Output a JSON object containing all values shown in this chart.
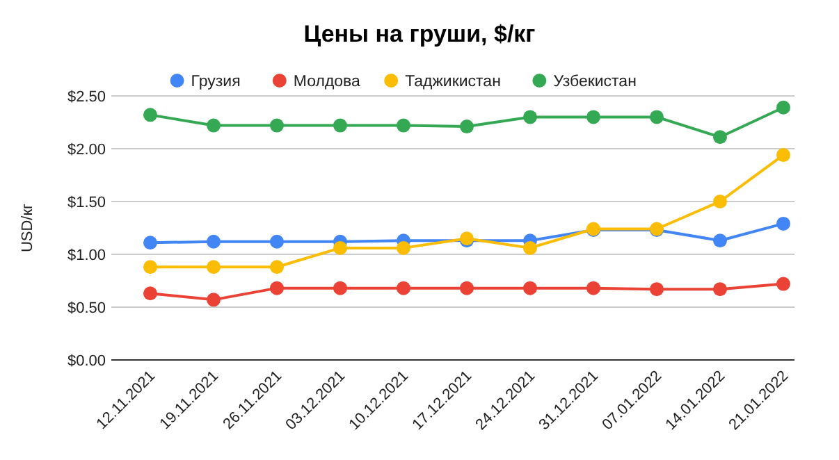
{
  "chart_data": {
    "type": "line",
    "title": "Цены на груши, $/кг",
    "ylabel": "USD/кг",
    "categories": [
      "12.11.2021",
      "19.11.2021",
      "26.11.2021",
      "03.12.2021",
      "10.12.2021",
      "17.12.2021",
      "24.12.2021",
      "31.12.2021",
      "07.01.2022",
      "14.01.2022",
      "21.01.2022"
    ],
    "series": [
      {
        "name": "Грузия",
        "color": "#4285f4",
        "values": [
          1.11,
          1.12,
          1.12,
          1.12,
          1.13,
          1.13,
          1.13,
          1.23,
          1.23,
          1.13,
          1.29
        ]
      },
      {
        "name": "Молдова",
        "color": "#ea4335",
        "values": [
          0.63,
          0.57,
          0.68,
          0.68,
          0.68,
          0.68,
          0.68,
          0.68,
          0.67,
          0.67,
          0.72
        ]
      },
      {
        "name": "Таджикистан",
        "color": "#fbbc04",
        "values": [
          0.88,
          0.88,
          0.88,
          1.06,
          1.06,
          1.15,
          1.06,
          1.24,
          1.24,
          1.5,
          1.94
        ]
      },
      {
        "name": "Узбекистан",
        "color": "#34a853",
        "values": [
          2.32,
          2.22,
          2.22,
          2.22,
          2.22,
          2.21,
          2.3,
          2.3,
          2.3,
          2.11,
          2.39
        ]
      }
    ],
    "ylim": [
      0,
      2.5
    ],
    "yticks": [
      {
        "value": 0,
        "label": "$0.00"
      },
      {
        "value": 0.5,
        "label": "$0.50"
      },
      {
        "value": 1,
        "label": "$1.00"
      },
      {
        "value": 1.5,
        "label": "$1.50"
      },
      {
        "value": 2,
        "label": "$2.00"
      },
      {
        "value": 2.5,
        "label": "$2.50"
      }
    ],
    "grid": "y",
    "legend": "top",
    "marker": "circle",
    "line_style": "solid"
  }
}
